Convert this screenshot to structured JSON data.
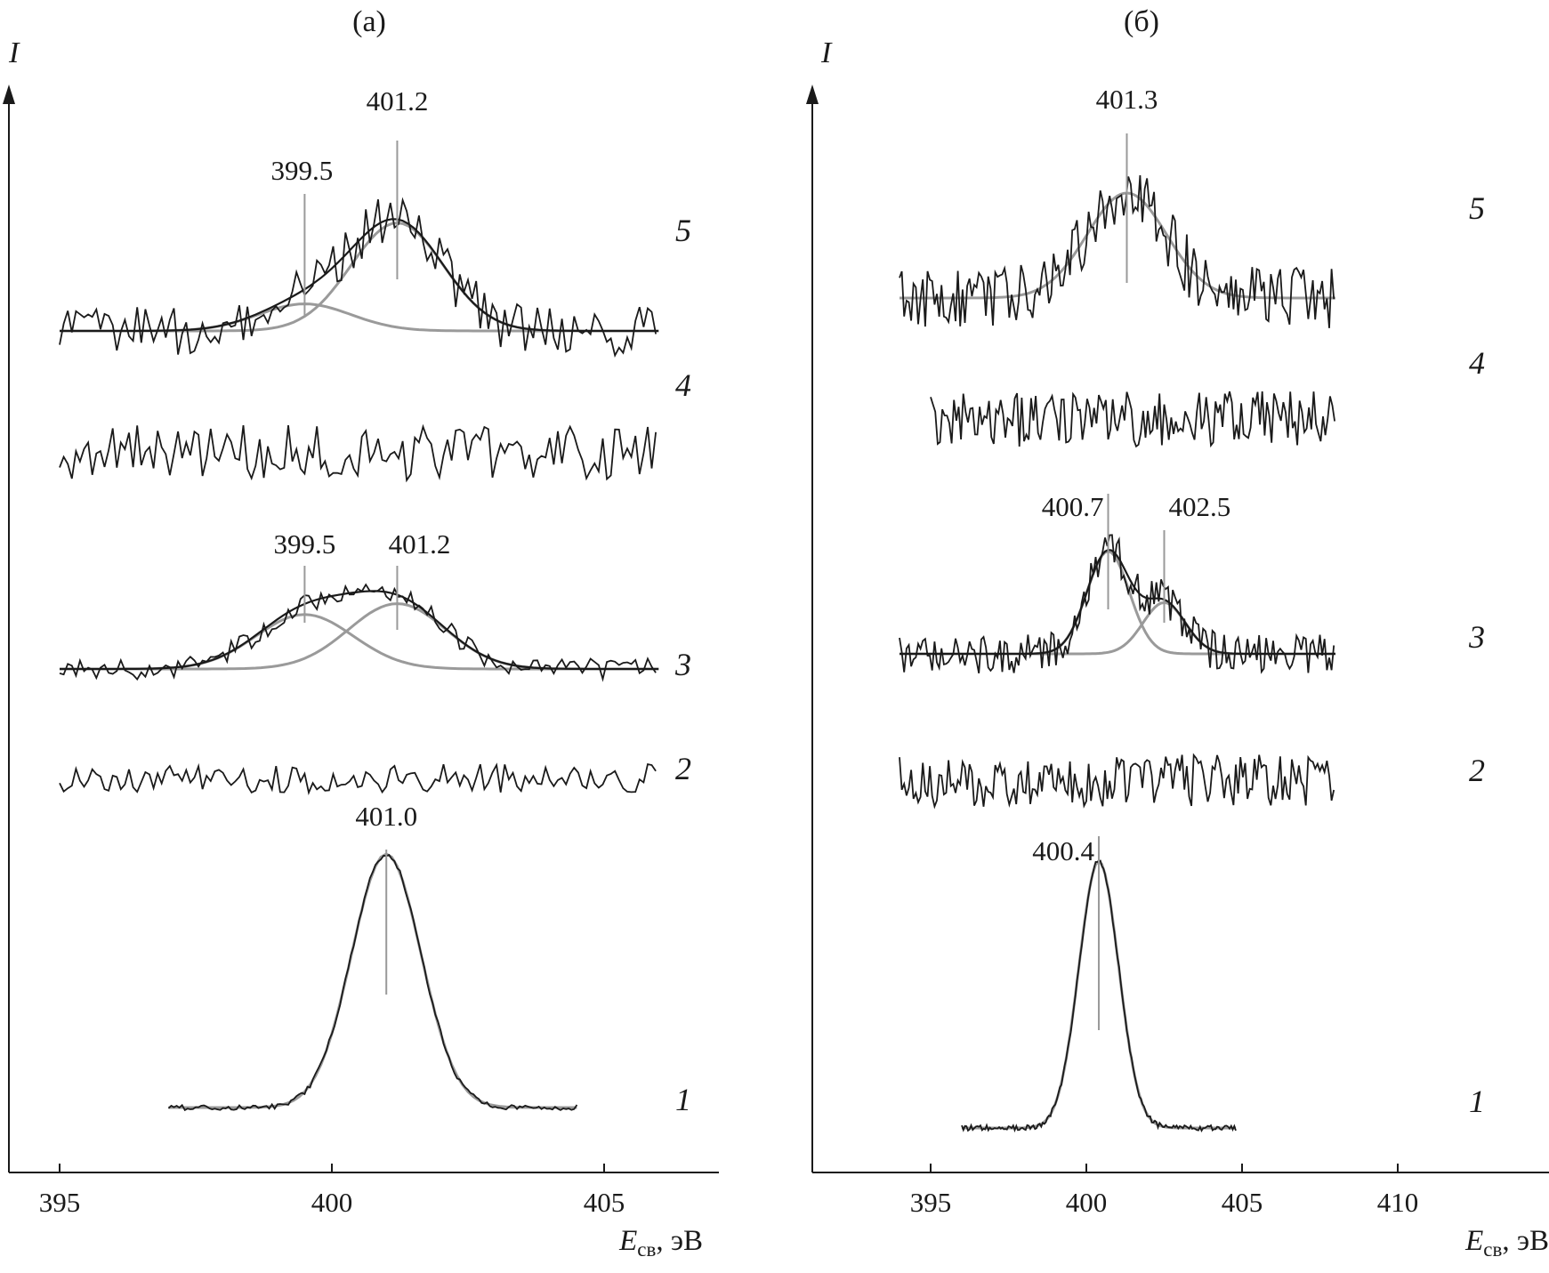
{
  "chart_data": [
    {
      "panel_label": "(а)",
      "type": "line",
      "subtype": "stacked XPS N1s spectra (offset curves)",
      "y_axis_label": "I",
      "x_axis_label": {
        "main": "E",
        "sub": "св",
        "unit": ", эВ"
      },
      "x_range": [
        395,
        406
      ],
      "x_reversed": false,
      "x_ticks": [
        395,
        400,
        405
      ],
      "x_tick_labels": [
        "395",
        "400",
        "405"
      ],
      "grid": false,
      "curves": [
        {
          "label": "1",
          "x_range": [
            397,
            404.5
          ],
          "peaks": [
            {
              "position": 401.0,
              "fwhm": 1.5,
              "label": "401.0"
            }
          ],
          "noise": "low"
        },
        {
          "label": "2",
          "x_range": [
            395,
            406
          ],
          "peaks": [],
          "noise": "medium"
        },
        {
          "label": "3",
          "x_range": [
            395,
            406
          ],
          "peaks": [
            {
              "position": 399.5,
              "fwhm": 2.1,
              "label": "399.5"
            },
            {
              "position": 401.2,
              "fwhm": 2.1,
              "label": "401.2"
            }
          ],
          "fit_envelope": true,
          "noise": "medium"
        },
        {
          "label": "4",
          "x_range": [
            395,
            406
          ],
          "peaks": [],
          "noise": "high"
        },
        {
          "label": "5",
          "x_range": [
            395,
            406
          ],
          "peaks": [
            {
              "position": 399.5,
              "fwhm": 2.0,
              "label": "399.5"
            },
            {
              "position": 401.2,
              "fwhm": 2.0,
              "label": "401.2"
            }
          ],
          "fit_envelope": true,
          "noise": "high"
        }
      ]
    },
    {
      "panel_label": "(б)",
      "type": "line",
      "subtype": "stacked XPS N1s spectra (offset curves)",
      "y_axis_label": "I",
      "x_axis_label": {
        "main": "E",
        "sub": "св",
        "unit": ", эВ"
      },
      "x_range": [
        392.5,
        410
      ],
      "x_reversed": false,
      "x_ticks": [
        395,
        400,
        405,
        410
      ],
      "x_tick_labels": [
        "395",
        "400",
        "405",
        "410"
      ],
      "grid": false,
      "curves": [
        {
          "label": "1",
          "x_range": [
            396,
            404.8
          ],
          "peaks": [
            {
              "position": 400.4,
              "fwhm": 1.5,
              "label": "400.4"
            }
          ],
          "noise": "low"
        },
        {
          "label": "2",
          "x_range": [
            394,
            408
          ],
          "peaks": [],
          "noise": "high"
        },
        {
          "label": "3",
          "x_range": [
            394,
            408
          ],
          "peaks": [
            {
              "position": 400.7,
              "fwhm": 1.6,
              "label": "400.7"
            },
            {
              "position": 402.5,
              "fwhm": 1.6,
              "label": "402.5"
            }
          ],
          "fit_envelope": true,
          "noise": "high"
        },
        {
          "label": "4",
          "x_range": [
            395,
            408
          ],
          "peaks": [],
          "noise": "high"
        },
        {
          "label": "5",
          "x_range": [
            394,
            408
          ],
          "peaks": [
            {
              "position": 401.3,
              "fwhm": 3.0,
              "label": "401.3"
            }
          ],
          "fit_envelope": false,
          "noise": "high"
        }
      ]
    }
  ]
}
